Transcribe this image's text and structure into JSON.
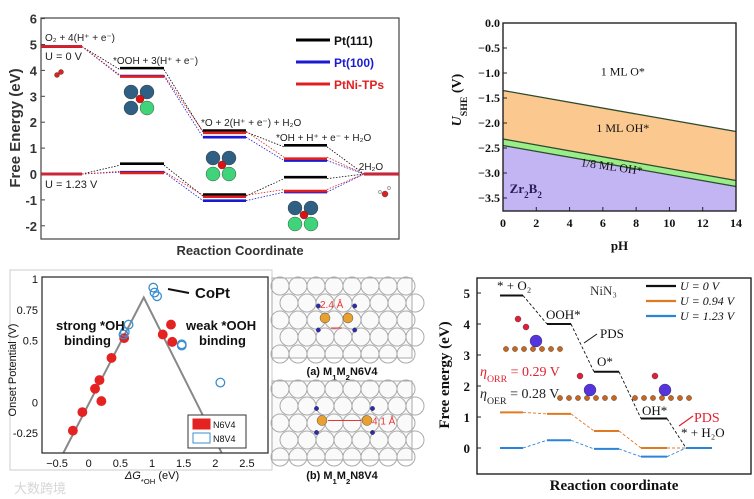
{
  "chart_data": [
    {
      "type": "line",
      "subtype": "free-energy-diagram",
      "title": "",
      "xlabel": "Reaction Coordinate",
      "ylabel": "Free Energy (eV)",
      "ylim": [
        -2.5,
        6
      ],
      "yticks": [
        "6",
        "5",
        "4",
        "3",
        "2",
        "1",
        "0",
        "-1",
        "-2"
      ],
      "steps": [
        "O₂ + 4(H⁺ + e⁻)",
        "*OOH + 3(H⁺ + e⁻)",
        "*O + 2(H⁺ + e⁻) + H₂O",
        "*OH + H⁺ + e⁻ + H₂O",
        "2H₂O"
      ],
      "annotations": [
        "U = 0 V",
        "U = 1.23 V"
      ],
      "series": [
        {
          "name": "Pt(111)",
          "color": "#000000",
          "u0": [
            4.92,
            4.03,
            1.62,
            1.05,
            0
          ],
          "u123": [
            0,
            0.34,
            -0.85,
            -0.18,
            0
          ]
        },
        {
          "name": "Pt(100)",
          "color": "#1a1ad0",
          "u0": [
            4.92,
            3.78,
            1.42,
            0.52,
            0
          ],
          "u123": [
            0,
            0.07,
            -1.03,
            -0.7,
            0
          ]
        },
        {
          "name": "PtNi-TPs",
          "color": "#e02020",
          "u0": [
            4.92,
            3.82,
            1.65,
            0.65,
            0
          ],
          "u123": [
            0,
            0.1,
            -0.82,
            -0.6,
            0
          ]
        }
      ],
      "legend": "top-right"
    },
    {
      "type": "area",
      "subtype": "pourbaix-diagram",
      "xlabel": "pH",
      "ylabel_main": "U",
      "ylabel_sub": "SHE",
      "ylabel_unit": " (V)",
      "xlim": [
        0,
        14
      ],
      "ylim": [
        -3.75,
        0
      ],
      "xticks": [
        "0",
        "2",
        "4",
        "6",
        "8",
        "10",
        "12",
        "14"
      ],
      "yticks": [
        "0.0",
        "-0.5",
        "-1.0",
        "-1.5",
        "-2.0",
        "-2.5",
        "-3.0",
        "-3.5"
      ],
      "boundaries": {
        "o_oh": [
          [
            0,
            -1.35
          ],
          [
            14,
            -2.17
          ]
        ],
        "oh_top": [
          [
            0,
            -2.32
          ],
          [
            14,
            -3.15
          ]
        ],
        "oh_bottom": [
          [
            0,
            -2.45
          ],
          [
            14,
            -3.27
          ]
        ]
      },
      "regions": [
        {
          "label": "1 ML O*",
          "color": "#ffffff"
        },
        {
          "label": "1 ML OH*",
          "color": "#fbc98f"
        },
        {
          "label": "1/8 ML OH*",
          "color": "#99ee88"
        },
        {
          "label_main": "Zr",
          "sub1": "2",
          "label_b": "B",
          "sub2": "2",
          "color": "#c3b4f4"
        }
      ]
    },
    {
      "type": "scatter",
      "subtype": "volcano-plot",
      "xlabel": "ΔG",
      "xlabel_sub": "*OH",
      "xlabel_unit": " (eV)",
      "ylabel": "Onset Potential (V)",
      "xlim": [
        -0.75,
        2.8
      ],
      "ylim": [
        -0.41,
        1.0
      ],
      "xticks": [
        "-0.5",
        "0",
        "0.5",
        "1",
        "1.5",
        "2",
        "2.5"
      ],
      "yticks": [
        "1",
        "0.75",
        "0.5",
        "0",
        "-0.25"
      ],
      "volcano": [
        [
          -0.4,
          -0.41
        ],
        [
          0.87,
          0.85
        ],
        [
          2.1,
          -0.41
        ]
      ],
      "annotations": [
        "strong *OH",
        "binding",
        "weak *OOH",
        "binding",
        "CoPt"
      ],
      "series": [
        {
          "name": "N6V4",
          "color": "#e52222",
          "filled": true,
          "points": [
            [
              -0.25,
              -0.23
            ],
            [
              -0.1,
              -0.08
            ],
            [
              0.1,
              0.11
            ],
            [
              0.17,
              0.18
            ],
            [
              0.2,
              0.01
            ],
            [
              0.36,
              0.36
            ],
            [
              0.56,
              0.52
            ],
            [
              1.17,
              0.55
            ],
            [
              1.3,
              0.63
            ],
            [
              1.32,
              0.49
            ]
          ]
        },
        {
          "name": "N8V4",
          "color": "#3a8fd0",
          "filled": false,
          "points": [
            [
              1.02,
              0.93
            ],
            [
              1.04,
              0.89
            ],
            [
              1.08,
              0.86
            ],
            [
              0.55,
              0.55
            ],
            [
              0.57,
              0.57
            ],
            [
              0.63,
              0.63
            ],
            [
              1.47,
              0.46
            ],
            [
              1.47,
              0.47
            ],
            [
              2.08,
              0.16
            ]
          ]
        }
      ],
      "legend": "bottom-right",
      "structures": [
        {
          "caption_a": "(a) M",
          "s1": "1",
          "m2": "M",
          "s2": "2",
          "rest": "N6V4",
          "distance": "2.4 Å"
        },
        {
          "caption_a": "(b) M",
          "s1": "1",
          "m2": "M",
          "s2": "2",
          "rest": "N8V4",
          "distance": "4.1 Å"
        }
      ],
      "watermark": "大数跨境"
    },
    {
      "type": "line",
      "subtype": "free-energy-diagram",
      "title": "NiN₃",
      "xlabel": "Reaction coordinate",
      "ylabel": "Free energy (eV)",
      "ylim": [
        -0.9,
        5.5
      ],
      "yticks": [
        "5",
        "4",
        "3",
        "2",
        "1",
        "0"
      ],
      "steps": [
        "* + O₂",
        "OOH*",
        "O*",
        "OH*",
        "* + H₂O"
      ],
      "annotations": {
        "pds1": "PDS",
        "pds2": "PDS",
        "eta_orr_sym": "η",
        "eta_orr_sub": "ORR",
        "eta_orr_val": " = 0.29 V",
        "eta_oer_sym": "η",
        "eta_oer_sub": "OER",
        "eta_oer_val": " = 0.28 V"
      },
      "series": [
        {
          "name": "U = 0 V",
          "color": "#111111",
          "values": [
            4.92,
            4.0,
            2.46,
            0.95,
            0
          ]
        },
        {
          "name": "U = 0.94 V",
          "color": "#e07a22",
          "values": [
            1.15,
            1.1,
            0.55,
            0,
            0
          ]
        },
        {
          "name": "U = 1.23 V",
          "color": "#2a85d8",
          "values": [
            0,
            0.25,
            -0.03,
            -0.28,
            0
          ]
        }
      ],
      "legend": "top-right"
    }
  ]
}
